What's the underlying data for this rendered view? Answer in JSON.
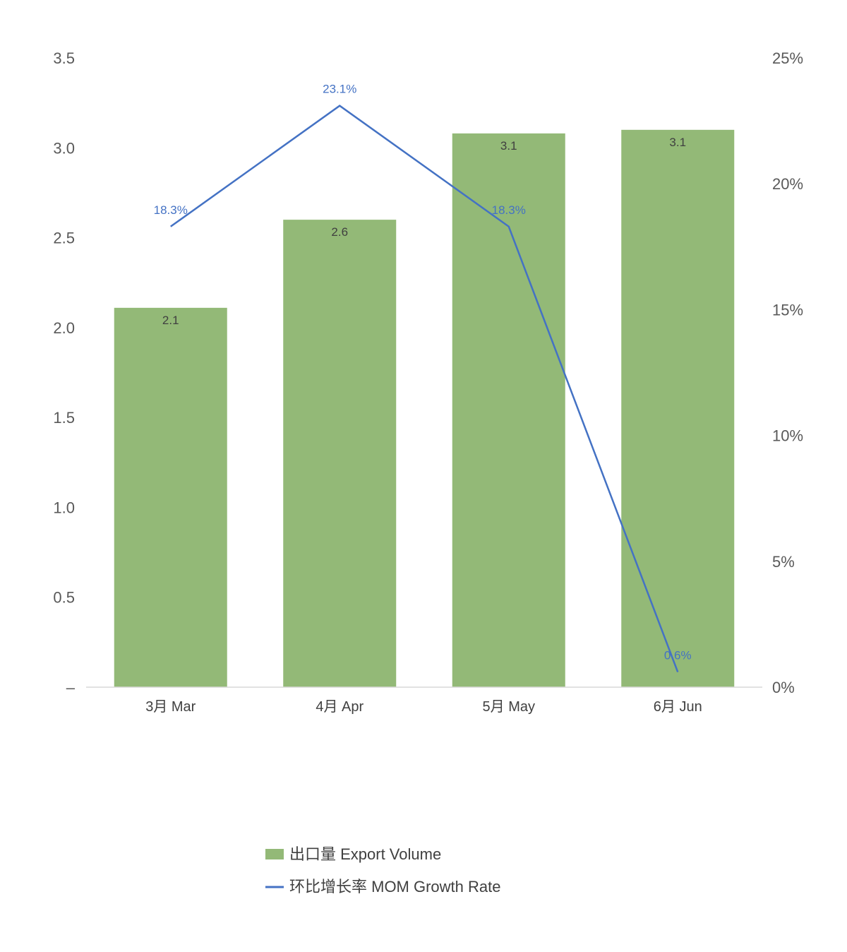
{
  "chart_data": {
    "type": "bar",
    "title": "",
    "xlabel": "",
    "ylabel": "",
    "categories": [
      "3月 Mar",
      "4月 Apr",
      "5月 May",
      "6月 Jun"
    ],
    "series": [
      {
        "name": "出口量 Export Volume",
        "type": "bar",
        "axis": "left",
        "color": "#93b977",
        "values": [
          2.11,
          2.6,
          3.08,
          3.1
        ],
        "labels": [
          "2.1",
          "2.6",
          "3.1",
          "3.1"
        ]
      },
      {
        "name": "环比增长率 MOM Growth Rate",
        "type": "line",
        "axis": "right",
        "color": "#4472c4",
        "values": [
          18.3,
          23.1,
          18.3,
          0.6
        ],
        "labels": [
          "18.3%",
          "23.1%",
          "18.3%",
          "0.6%"
        ]
      }
    ],
    "y_left": {
      "ylim": [
        0,
        3.5
      ],
      "ticks": [
        0,
        0.5,
        1.0,
        1.5,
        2.0,
        2.5,
        3.0,
        3.5
      ],
      "tick_labels": [
        "–",
        "0.5",
        "1.0",
        "1.5",
        "2.0",
        "2.5",
        "3.0",
        "3.5"
      ]
    },
    "y_right": {
      "ylim": [
        0,
        25
      ],
      "ticks": [
        0,
        5,
        10,
        15,
        20,
        25
      ],
      "tick_labels": [
        "0%",
        "5%",
        "10%",
        "15%",
        "20%",
        "25%"
      ]
    },
    "grid": false,
    "legend": "bottom"
  }
}
